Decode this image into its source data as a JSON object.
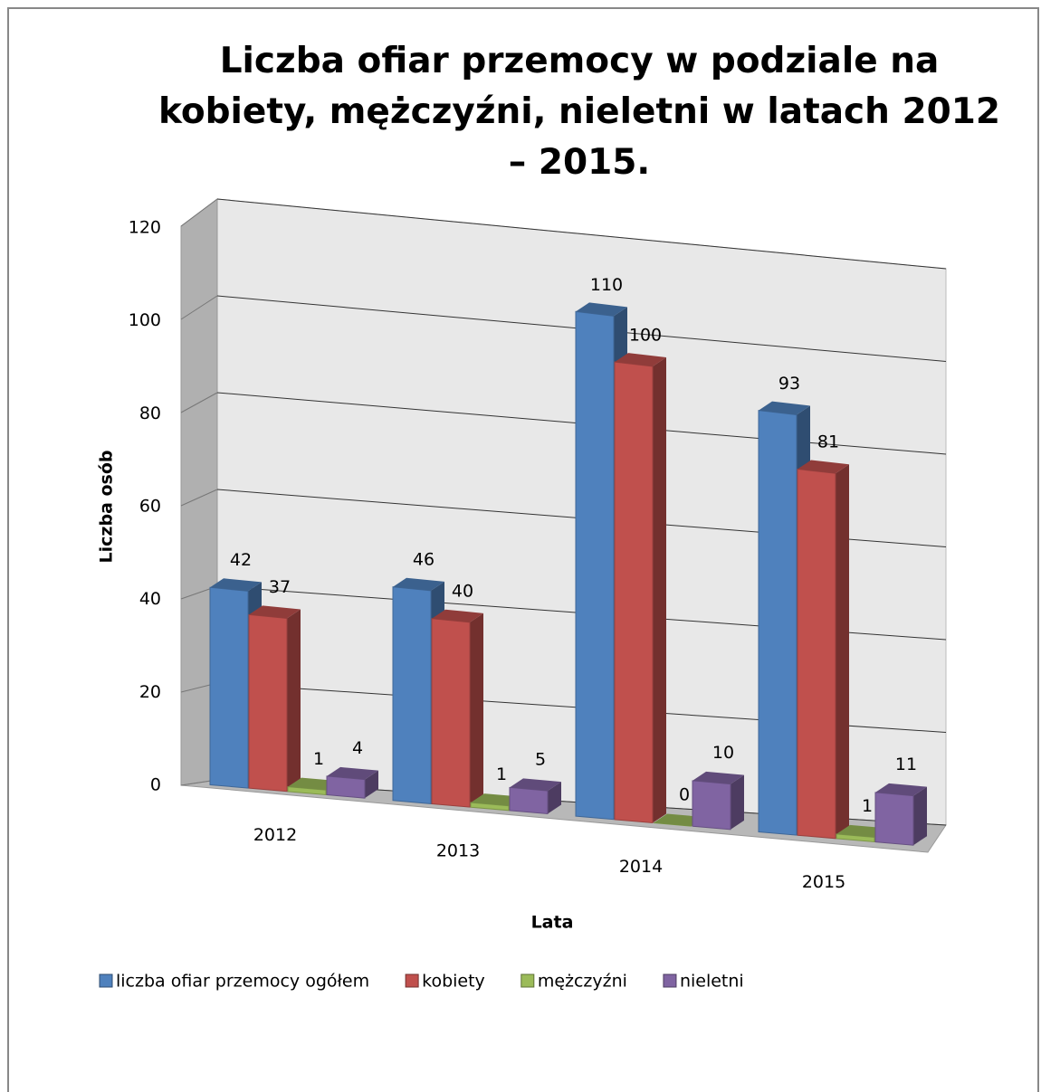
{
  "chart_data": {
    "type": "bar3d",
    "title": "Liczba ofiar przemocy w podziale na kobiety, mężczyźni, nieletni w latach 2012 – 2015.",
    "x_label": "Lata",
    "y_label": "Liczba osób",
    "categories": [
      "2012",
      "2013",
      "2014",
      "2015"
    ],
    "series": [
      {
        "name": "liczba ofiar przemocy ogółem",
        "color": "#4f81bd",
        "values": [
          42,
          46,
          110,
          93
        ]
      },
      {
        "name": "kobiety",
        "color": "#c0504d",
        "values": [
          37,
          40,
          100,
          81
        ]
      },
      {
        "name": "mężczyźni",
        "color": "#9bbb59",
        "values": [
          1,
          1,
          0,
          1
        ]
      },
      {
        "name": "nieletni",
        "color": "#8064a2",
        "values": [
          4,
          5,
          10,
          11
        ]
      }
    ],
    "ylim": [
      0,
      120
    ],
    "yticks": [
      0,
      20,
      40,
      60,
      80,
      100,
      120
    ],
    "grid": true,
    "legend": "bottom"
  }
}
